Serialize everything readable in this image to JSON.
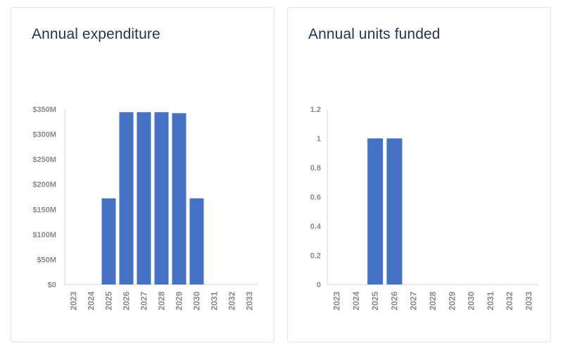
{
  "charts": [
    {
      "title": "Annual expenditure"
    },
    {
      "title": "Annual units funded"
    }
  ],
  "chart_data": [
    {
      "type": "bar",
      "title": "Annual expenditure",
      "xlabel": "",
      "ylabel": "",
      "categories": [
        "2023",
        "2024",
        "2025",
        "2026",
        "2027",
        "2028",
        "2029",
        "2030",
        "2031",
        "2032",
        "2033"
      ],
      "values": [
        0,
        0,
        172,
        344,
        344,
        344,
        342,
        172,
        0,
        0,
        0
      ],
      "value_unit": "$M",
      "ylim": [
        0,
        350
      ],
      "yticks": [
        0,
        50,
        100,
        150,
        200,
        250,
        300,
        350
      ],
      "ytick_labels": [
        "$0",
        "$50M",
        "$100M",
        "$150M",
        "$200M",
        "$250M",
        "$300M",
        "$350M"
      ],
      "x_label_rotation": "vertical",
      "grid": false,
      "legend": "none",
      "bar_color": "#4472c4",
      "axis_color": "#d9d9d9"
    },
    {
      "type": "bar",
      "title": "Annual units funded",
      "xlabel": "",
      "ylabel": "",
      "categories": [
        "2023",
        "2024",
        "2025",
        "2026",
        "2027",
        "2028",
        "2029",
        "2030",
        "2031",
        "2032",
        "2033"
      ],
      "values": [
        0,
        0,
        1,
        1,
        0,
        0,
        0,
        0,
        0,
        0,
        0
      ],
      "ylim": [
        0,
        1.2
      ],
      "yticks": [
        0,
        0.2,
        0.4,
        0.6,
        0.8,
        1,
        1.2
      ],
      "ytick_labels": [
        "0",
        "0.2",
        "0.4",
        "0.6",
        "0.8",
        "1",
        "1.2"
      ],
      "x_label_rotation": "vertical",
      "grid": false,
      "legend": "none",
      "bar_color": "#4472c4",
      "axis_color": "#d9d9d9"
    }
  ]
}
